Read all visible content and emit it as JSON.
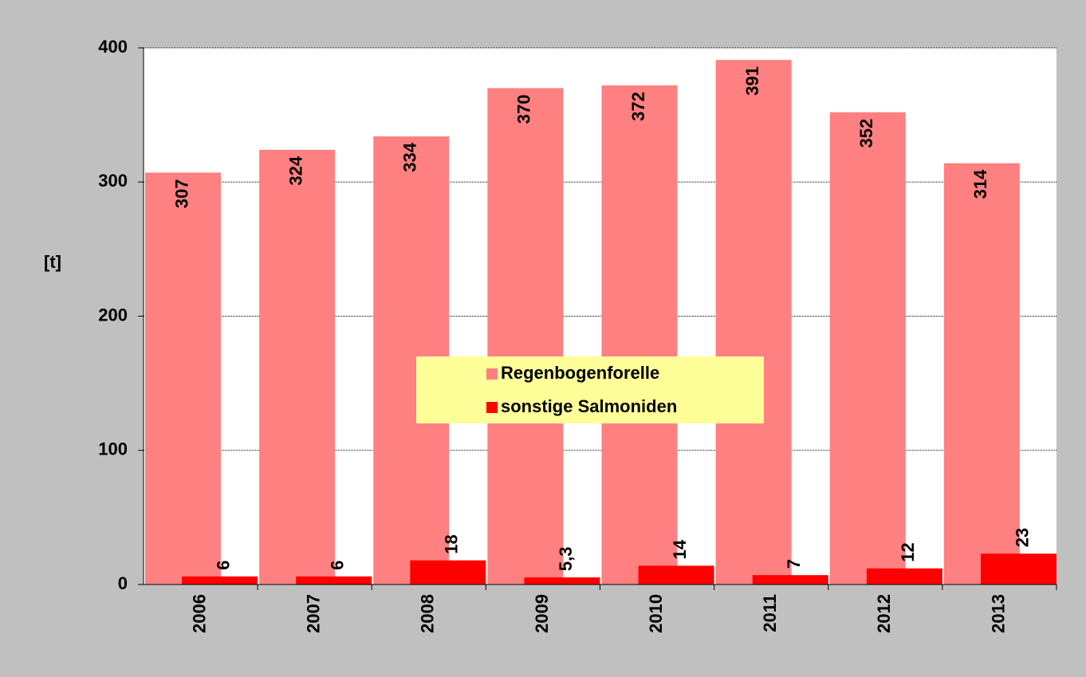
{
  "chart_data": {
    "type": "bar",
    "y_label": "[t]",
    "categories": [
      "2006",
      "2007",
      "2008",
      "2009",
      "2010",
      "2011",
      "2012",
      "2013"
    ],
    "series": [
      {
        "name": "Regenbogenforelle",
        "color": "#ff8080",
        "values": [
          307,
          324,
          334,
          370,
          372,
          391,
          352,
          314
        ]
      },
      {
        "name": "sonstige Salmoniden",
        "color": "#ff0000",
        "values": [
          6,
          6,
          18,
          5.3,
          14,
          7,
          12,
          23
        ],
        "value_labels": [
          "6",
          "6",
          "18",
          "5,3",
          "14",
          "7",
          "12",
          "23"
        ]
      }
    ],
    "ylim": [
      0,
      400
    ],
    "yticks": [
      0,
      100,
      200,
      300,
      400
    ],
    "grid": true
  }
}
